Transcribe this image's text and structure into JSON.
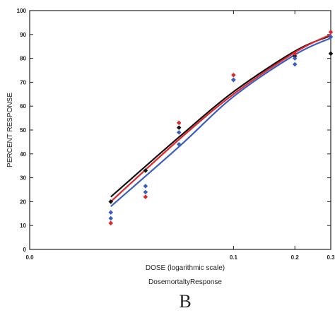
{
  "chart_data": {
    "type": "scatter",
    "xlabel": "DOSE  (logarithmic scale)",
    "ylabel": "PERCENT  RESPONSE",
    "caption": "DosemortaltyResponse",
    "panel_letter": "B",
    "x_scale": "log",
    "xlim": [
      0.01,
      0.3
    ],
    "ylim": [
      0,
      100
    ],
    "x_ticks": [
      {
        "value": 0.01,
        "label": "0.0"
      },
      {
        "value": 0.1,
        "label": "0.1"
      },
      {
        "value": 0.2,
        "label": "0.2"
      },
      {
        "value": 0.3,
        "label": "0.3"
      }
    ],
    "y_ticks": [
      0,
      10,
      20,
      30,
      40,
      50,
      60,
      70,
      80,
      90,
      100
    ],
    "grid": false,
    "legend": "none",
    "series": [
      {
        "color": "#111111",
        "points": [
          [
            0.025,
            20
          ],
          [
            0.037,
            33
          ],
          [
            0.054,
            51
          ],
          [
            0.1,
            71
          ],
          [
            0.2,
            81
          ],
          [
            0.3,
            82
          ]
        ],
        "curve": [
          [
            0.025,
            22
          ],
          [
            0.054,
            47
          ],
          [
            0.1,
            66
          ],
          [
            0.2,
            83
          ],
          [
            0.3,
            89.5
          ]
        ]
      },
      {
        "color": "#e0282e",
        "points": [
          [
            0.025,
            11
          ],
          [
            0.037,
            22
          ],
          [
            0.054,
            53
          ],
          [
            0.1,
            73
          ],
          [
            0.2,
            82
          ],
          [
            0.3,
            91
          ]
        ],
        "curve": [
          [
            0.025,
            20
          ],
          [
            0.054,
            46
          ],
          [
            0.1,
            65
          ],
          [
            0.2,
            82.5
          ],
          [
            0.3,
            90
          ]
        ]
      },
      {
        "color": "#3a5fc0",
        "points": [
          [
            0.025,
            15.5
          ],
          [
            0.025,
            13
          ],
          [
            0.037,
            26.5
          ],
          [
            0.037,
            24
          ],
          [
            0.054,
            49
          ],
          [
            0.054,
            44
          ],
          [
            0.1,
            71
          ],
          [
            0.2,
            80
          ],
          [
            0.2,
            77.5
          ],
          [
            0.3,
            89
          ]
        ],
        "curve": [
          [
            0.025,
            18
          ],
          [
            0.054,
            43
          ],
          [
            0.1,
            64
          ],
          [
            0.2,
            81.5
          ],
          [
            0.3,
            88.5
          ]
        ]
      }
    ]
  }
}
